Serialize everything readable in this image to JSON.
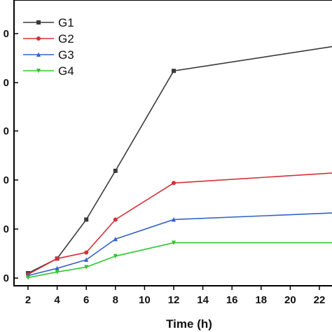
{
  "chart_data": {
    "type": "line",
    "title": "",
    "xlabel": "Time (h)",
    "ylabel": "",
    "x": [
      2,
      4,
      6,
      8,
      12,
      24
    ],
    "xticks": [
      2,
      4,
      6,
      8,
      10,
      12,
      14,
      16,
      18,
      20,
      22
    ],
    "xlim": [
      1.4,
      24
    ],
    "ylim": [
      0,
      1.0
    ],
    "ytick_labels": [
      "0",
      "0",
      "0",
      "0",
      "0",
      "0"
    ],
    "grid": false,
    "legend_position": "top-left",
    "series": [
      {
        "name": "G1",
        "color": "#3a3a3a",
        "marker": "square",
        "values": [
          0.02,
          0.08,
          0.24,
          0.44,
          0.85,
          0.96
        ]
      },
      {
        "name": "G2",
        "color": "#d7303a",
        "marker": "circle",
        "values": [
          0.015,
          0.08,
          0.105,
          0.24,
          0.39,
          0.435
        ]
      },
      {
        "name": "G3",
        "color": "#3263c8",
        "marker": "triangle-up",
        "values": [
          0.01,
          0.04,
          0.075,
          0.16,
          0.24,
          0.27
        ]
      },
      {
        "name": "G4",
        "color": "#2ec82e",
        "marker": "triangle-down",
        "values": [
          0.002,
          0.025,
          0.045,
          0.09,
          0.145,
          0.145
        ]
      }
    ]
  }
}
